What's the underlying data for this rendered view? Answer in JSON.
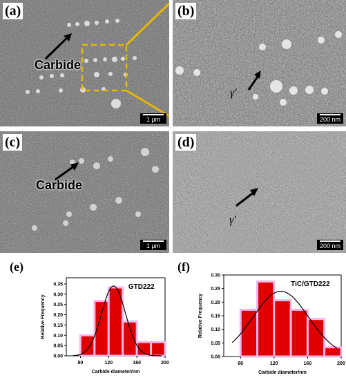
{
  "panels": {
    "a": {
      "label": "(a)",
      "annotation": "Carbide",
      "scale": "1 μm"
    },
    "b": {
      "label": "(b)",
      "annotation": "γ′",
      "scale": "200 nm"
    },
    "c": {
      "label": "(c)",
      "annotation": "Carbide",
      "scale": "1 μm"
    },
    "d": {
      "label": "(d)",
      "annotation": "γ′",
      "scale": "200 nm"
    }
  },
  "chart_labels": {
    "e": "(e)",
    "f": "(f)"
  },
  "chart_data": [
    {
      "type": "bar",
      "title": "GTD222",
      "xlabel": "Carbide diameter/nm",
      "ylabel": "Relative Frequency",
      "x": [
        90,
        110,
        130,
        150,
        170,
        190
      ],
      "values": [
        0.1,
        0.267,
        0.333,
        0.167,
        0.067,
        0.067
      ],
      "xlim": [
        60,
        200
      ],
      "ylim": [
        0,
        0.38
      ],
      "xticks": [
        80,
        120,
        160,
        200
      ],
      "yticks": [
        0.0,
        0.05,
        0.1,
        0.15,
        0.2,
        0.25,
        0.3,
        0.35
      ],
      "ytick_labels": [
        "0.00",
        "0.05",
        "0.10",
        "0.15",
        "0.20",
        "0.25",
        "0.30",
        "0.35"
      ],
      "fit_curve": {
        "type": "gaussian",
        "mean": 127,
        "sd": 17,
        "peak": 0.34
      },
      "bar_color": "#e00000",
      "bar_outline": "#f0b8e8"
    },
    {
      "type": "bar",
      "title": "TiC/GTD222",
      "xlabel": "Carbide diameter/nm",
      "ylabel": "Relative Frequency",
      "x": [
        90,
        110,
        130,
        150,
        170,
        190
      ],
      "values": [
        0.172,
        0.276,
        0.207,
        0.172,
        0.138,
        0.034
      ],
      "xlim": [
        60,
        200
      ],
      "ylim": [
        0,
        0.3
      ],
      "xticks": [
        80,
        120,
        160,
        200
      ],
      "yticks": [
        0.0,
        0.05,
        0.1,
        0.15,
        0.2,
        0.25,
        0.3
      ],
      "ytick_labels": [
        "0.00",
        "0.05",
        "0.10",
        "0.15",
        "0.20",
        "0.25",
        "0.30"
      ],
      "fit_curve": {
        "type": "gaussian",
        "mean": 128,
        "sd": 33,
        "peak": 0.24
      },
      "bar_color": "#e00000",
      "bar_outline": "#f0b8e8"
    }
  ]
}
